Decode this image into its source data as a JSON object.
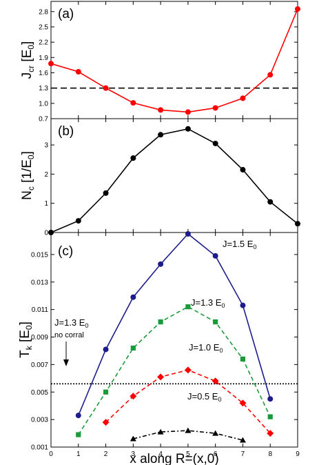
{
  "xlabel": "x along R=(x,0)",
  "x_ticks": [
    "0",
    "1",
    "2",
    "3",
    "4",
    "5",
    "6",
    "7",
    "8",
    "9"
  ],
  "chart_data": [
    {
      "type": "line",
      "panel_label": "(a)",
      "ylabel": "Jcr [E0]",
      "ylabel_main": "J",
      "ylabel_sub": "cr",
      "ylabel_unit": "[E",
      "ylabel_unit_sub": "0",
      "ylabel_close": "]",
      "xlim": [
        0,
        9
      ],
      "ylim": [
        0.7,
        3.0
      ],
      "y_ticks": [
        "0.7",
        "1.0",
        "1.3",
        "1.6",
        "1.9",
        "2.2",
        "2.5",
        "2.8"
      ],
      "reference_line": {
        "y": 1.3,
        "style": "dashed",
        "color": "#000000"
      },
      "series": [
        {
          "color": "#ff0000",
          "marker": "circle",
          "x": [
            0,
            1,
            2,
            3,
            4,
            5,
            6,
            7,
            8,
            9
          ],
          "y": [
            1.78,
            1.62,
            1.3,
            1.01,
            0.87,
            0.83,
            0.91,
            1.1,
            1.56,
            2.85
          ]
        }
      ]
    },
    {
      "type": "line",
      "panel_label": "(b)",
      "ylabel": "Nc [1/E0]",
      "ylabel_main": "N",
      "ylabel_sub": "c",
      "ylabel_unit": "[1/E",
      "ylabel_unit_sub": "0",
      "ylabel_close": "]",
      "xlim": [
        0,
        9
      ],
      "ylim": [
        0,
        3.9
      ],
      "y_ticks": [
        "0",
        "1",
        "2",
        "3"
      ],
      "series": [
        {
          "color": "#000000",
          "marker": "circle",
          "x": [
            0,
            1,
            2,
            3,
            4,
            5,
            6,
            7,
            8,
            9
          ],
          "y": [
            0.0,
            0.4,
            1.35,
            2.55,
            3.35,
            3.55,
            3.05,
            2.15,
            1.05,
            0.3
          ]
        }
      ]
    },
    {
      "type": "line",
      "panel_label": "(c)",
      "ylabel": "Tk [E0]",
      "ylabel_main": "T",
      "ylabel_sub": "k",
      "ylabel_unit": "[E",
      "ylabel_unit_sub": "0",
      "ylabel_close": "]",
      "xlim": [
        0,
        9
      ],
      "ylim": [
        0.001,
        0.0166
      ],
      "y_ticks": [
        "0.001",
        "0.003",
        "0.005",
        "0.007",
        "0.009",
        "0.011",
        "0.013",
        "0.015"
      ],
      "reference_line": {
        "y": 0.0056,
        "style": "dotted",
        "color": "#000000"
      },
      "series": [
        {
          "label_main": "J=1.5 E",
          "label_sub": "0",
          "color": "#1c1c8c",
          "marker": "circle",
          "dash": "solid",
          "x": [
            1,
            2,
            3,
            4,
            5,
            6,
            7,
            8
          ],
          "y": [
            0.0033,
            0.0081,
            0.0119,
            0.0143,
            0.0165,
            0.0149,
            0.0113,
            0.0045
          ]
        },
        {
          "label_main": "J=1.3 E",
          "label_sub": "0",
          "color": "#1a9a3a",
          "marker": "square",
          "dash": "dashed",
          "x": [
            1,
            2,
            3,
            4,
            5,
            6,
            7,
            8
          ],
          "y": [
            0.0019,
            0.005,
            0.0082,
            0.0101,
            0.0112,
            0.0101,
            0.0074,
            0.0032
          ]
        },
        {
          "label_main": "J=1.0 E",
          "label_sub": "0",
          "color": "#ff0000",
          "marker": "diamond",
          "dash": "dashed",
          "x": [
            2,
            3,
            4,
            5,
            6,
            7,
            8
          ],
          "y": [
            0.0028,
            0.0047,
            0.0061,
            0.0066,
            0.0058,
            0.0042,
            0.002
          ]
        },
        {
          "label_main": "J=0.5 E",
          "label_sub": "0",
          "color": "#000000",
          "marker": "triangle",
          "dash": "dashdot",
          "x": [
            3,
            4,
            5,
            6,
            7
          ],
          "y": [
            0.0016,
            0.0021,
            0.0022,
            0.002,
            0.0015
          ]
        }
      ],
      "annotation": {
        "line1_main": "J=1.3 E",
        "line1_sub": "0",
        "line2": "no corral"
      }
    }
  ]
}
